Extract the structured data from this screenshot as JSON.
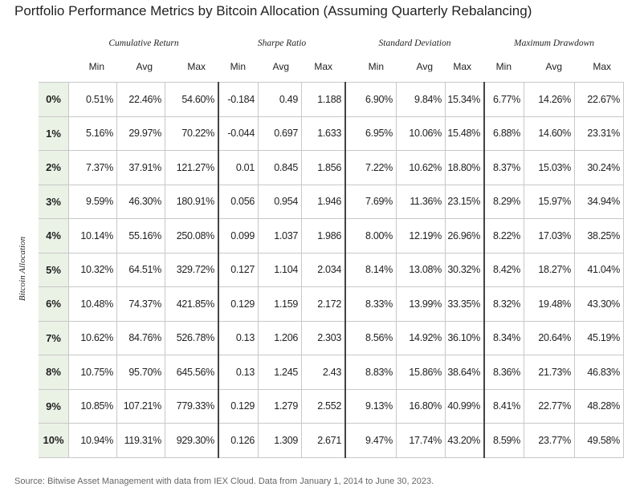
{
  "header": {
    "title": "Portfolio Performance Metrics by Bitcoin Allocation (Assuming Quarterly Rebalancing)"
  },
  "table": {
    "groups": [
      "Cumulative Return",
      "Sharpe Ratio",
      "Standard Deviation",
      "Maximum Drawdown"
    ],
    "columns": [
      "Min",
      "Avg",
      "Max",
      "Min",
      "Avg",
      "Max",
      "Min",
      "Avg",
      "Max",
      "Min",
      "Avg",
      "Max"
    ],
    "row_axis_label": "Bitcoin Allocation",
    "rows": [
      [
        "0%",
        "0.51%",
        "22.46%",
        "54.60%",
        "-0.184",
        "0.49",
        "1.188",
        "6.90%",
        "9.84%",
        "15.34%",
        "6.77%",
        "14.26%",
        "22.67%"
      ],
      [
        "1%",
        "5.16%",
        "29.97%",
        "70.22%",
        "-0.044",
        "0.697",
        "1.633",
        "6.95%",
        "10.06%",
        "15.48%",
        "6.88%",
        "14.60%",
        "23.31%"
      ],
      [
        "2%",
        "7.37%",
        "37.91%",
        "121.27%",
        "0.01",
        "0.845",
        "1.856",
        "7.22%",
        "10.62%",
        "18.80%",
        "8.37%",
        "15.03%",
        "30.24%"
      ],
      [
        "3%",
        "9.59%",
        "46.30%",
        "180.91%",
        "0.056",
        "0.954",
        "1.946",
        "7.69%",
        "11.36%",
        "23.15%",
        "8.29%",
        "15.97%",
        "34.94%"
      ],
      [
        "4%",
        "10.14%",
        "55.16%",
        "250.08%",
        "0.099",
        "1.037",
        "1.986",
        "8.00%",
        "12.19%",
        "26.96%",
        "8.22%",
        "17.03%",
        "38.25%"
      ],
      [
        "5%",
        "10.32%",
        "64.51%",
        "329.72%",
        "0.127",
        "1.104",
        "2.034",
        "8.14%",
        "13.08%",
        "30.32%",
        "8.42%",
        "18.27%",
        "41.04%"
      ],
      [
        "6%",
        "10.48%",
        "74.37%",
        "421.85%",
        "0.129",
        "1.159",
        "2.172",
        "8.33%",
        "13.99%",
        "33.35%",
        "8.32%",
        "19.48%",
        "43.30%"
      ],
      [
        "7%",
        "10.62%",
        "84.76%",
        "526.78%",
        "0.13",
        "1.206",
        "2.303",
        "8.56%",
        "14.92%",
        "36.10%",
        "8.34%",
        "20.64%",
        "45.19%"
      ],
      [
        "8%",
        "10.75%",
        "95.70%",
        "645.56%",
        "0.13",
        "1.245",
        "2.43",
        "8.83%",
        "15.86%",
        "38.64%",
        "8.36%",
        "21.73%",
        "46.83%"
      ],
      [
        "9%",
        "10.85%",
        "107.21%",
        "779.33%",
        "0.129",
        "1.279",
        "2.552",
        "9.13%",
        "16.80%",
        "40.99%",
        "8.41%",
        "22.77%",
        "48.28%"
      ],
      [
        "10%",
        "10.94%",
        "119.31%",
        "929.30%",
        "0.126",
        "1.309",
        "2.671",
        "9.47%",
        "17.74%",
        "43.20%",
        "8.59%",
        "23.77%",
        "49.58%"
      ]
    ]
  },
  "footer": {
    "source": "Source: Bitwise Asset Management with data from IEX Cloud. Data from January 1, 2014 to June 30, 2023."
  }
}
